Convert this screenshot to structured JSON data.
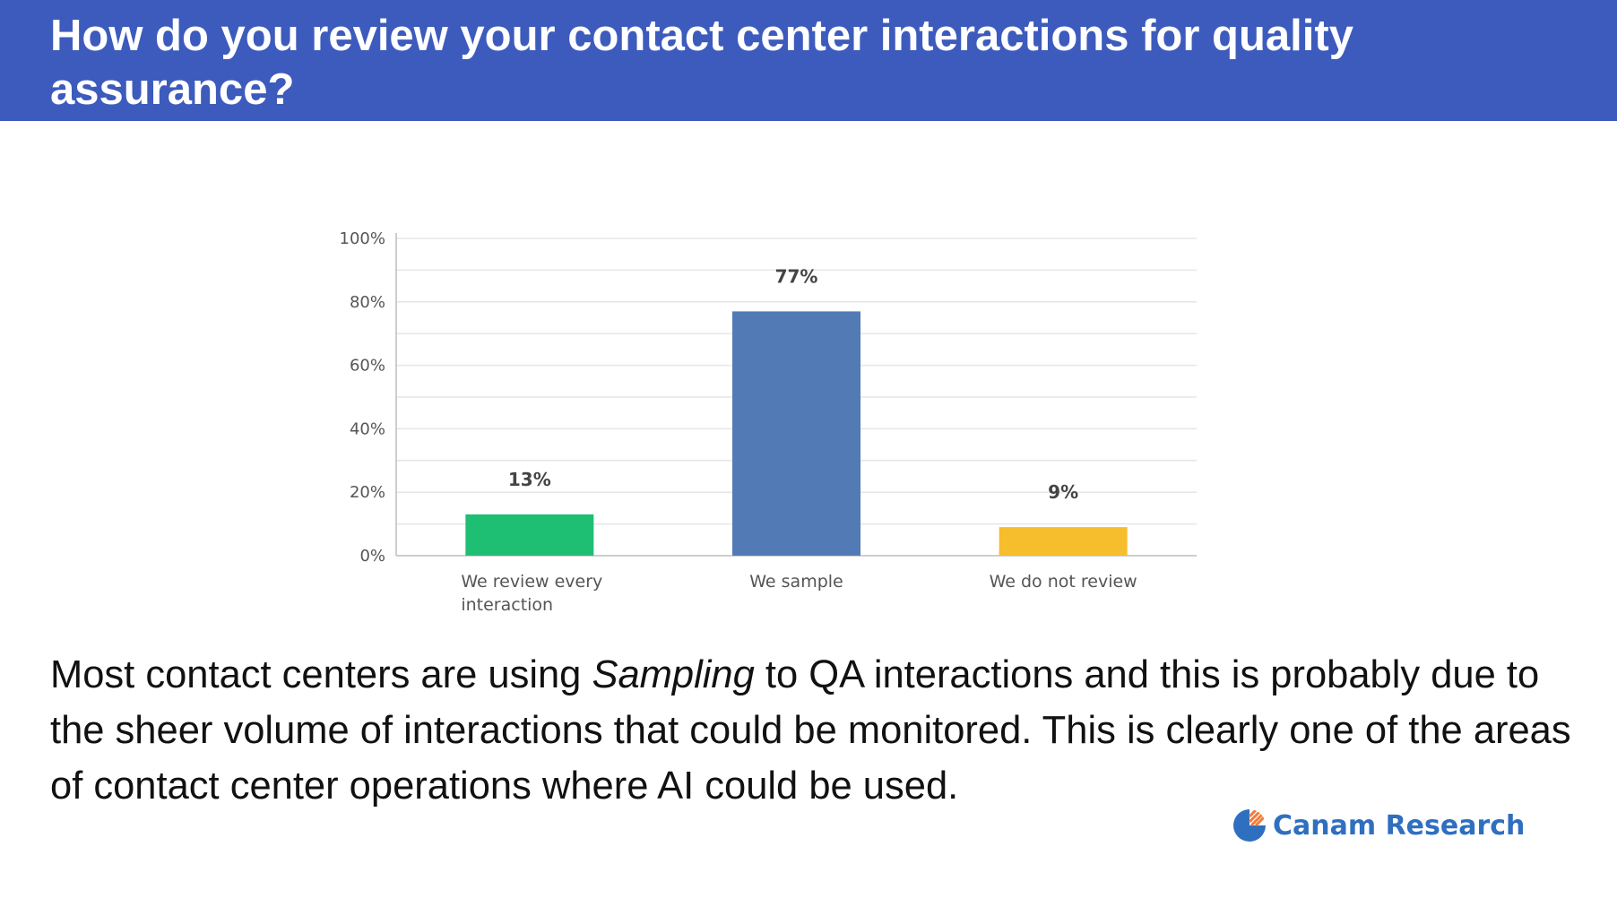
{
  "header": {
    "title": "How do you review your contact center interactions for quality assurance?"
  },
  "chart_data": {
    "type": "bar",
    "categories": [
      "We review every interaction",
      "We sample",
      "We do not review"
    ],
    "category_lines": [
      [
        "We review every",
        "interaction"
      ],
      [
        "We sample"
      ],
      [
        "We do not review"
      ]
    ],
    "values": [
      13,
      77,
      9
    ],
    "data_labels": [
      "13%",
      "77%",
      "9%"
    ],
    "colors": [
      "#1fbf73",
      "#527bb5",
      "#f6bd2c"
    ],
    "ylim": [
      0,
      100
    ],
    "yticks": [
      0,
      20,
      40,
      60,
      80,
      100
    ],
    "ytick_labels": [
      "0%",
      "20%",
      "40%",
      "60%",
      "80%",
      "100%"
    ],
    "grid": true,
    "title": "",
    "xlabel": "",
    "ylabel": ""
  },
  "body": {
    "text_before": "Most contact centers are using ",
    "emphasis": "Sampling",
    "text_after": " to QA interactions and this is probably due to the sheer volume of interactions that could be monitored. This is clearly one of the areas of contact center operations where AI could be used."
  },
  "logo": {
    "text": "Canam Research",
    "icon": "canam-logo-icon",
    "color": "#2f6fc0"
  }
}
